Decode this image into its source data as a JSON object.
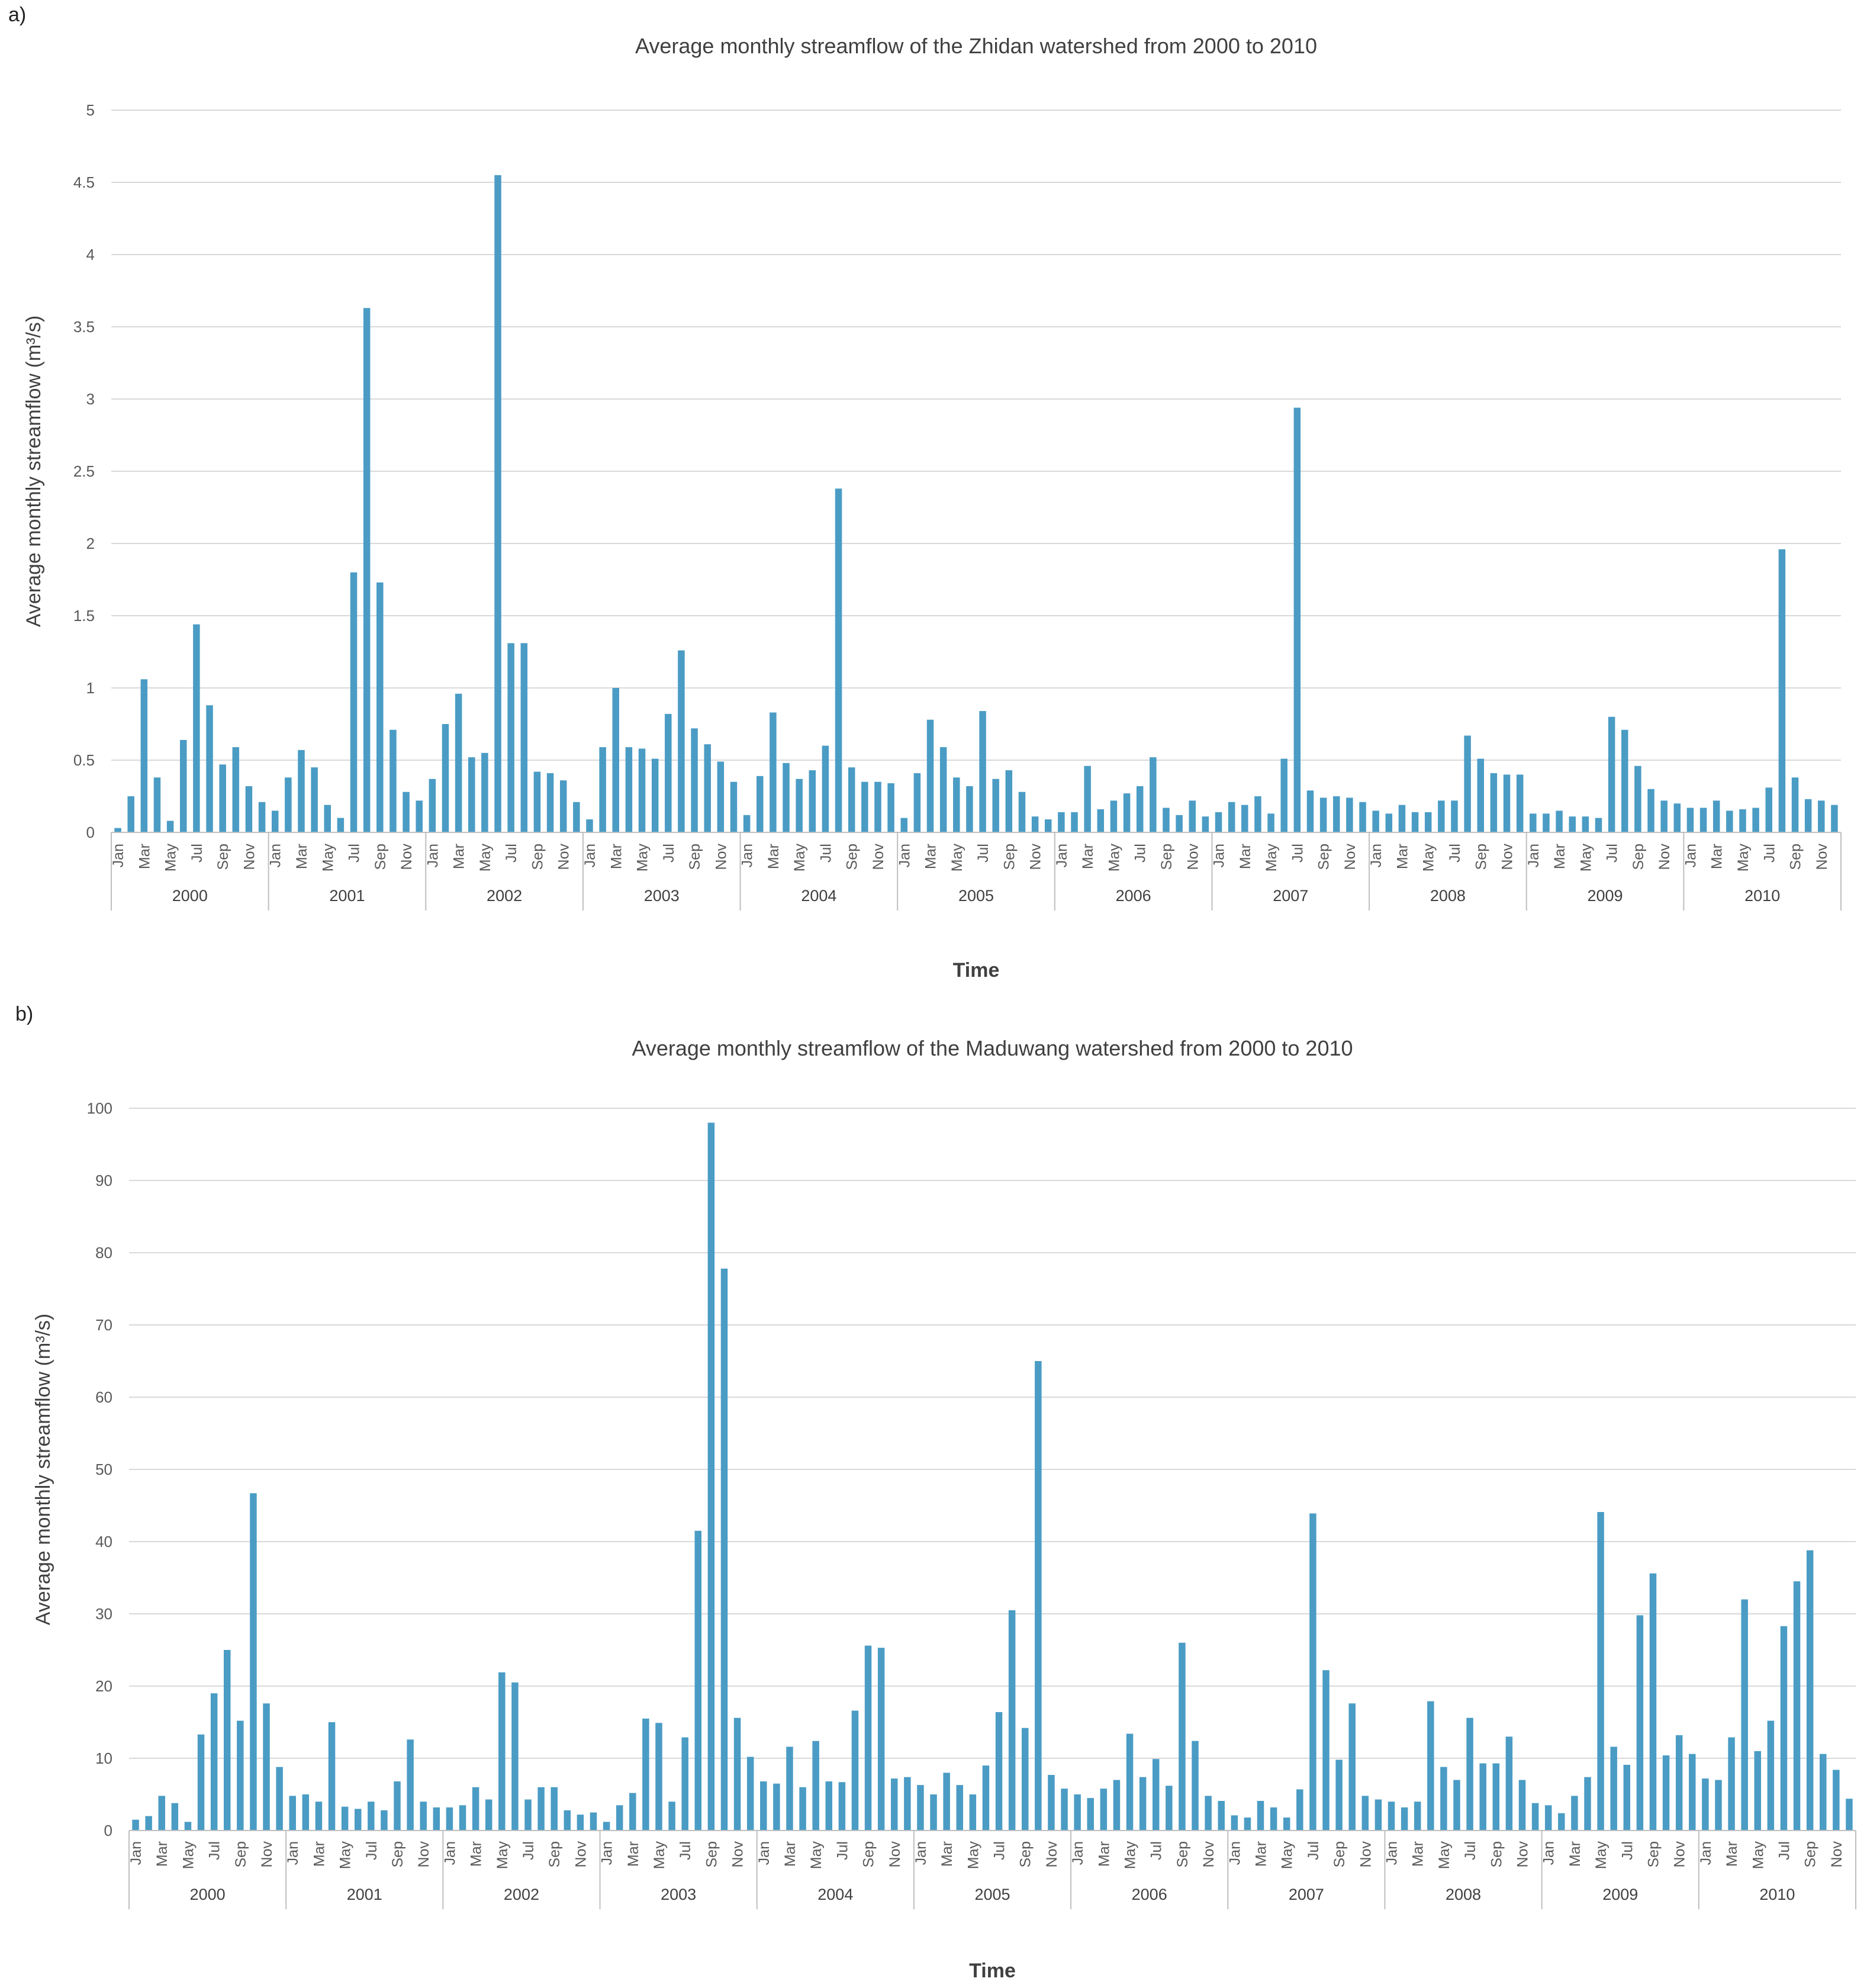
{
  "panels": {
    "a_label": "a)",
    "b_label": "b)"
  },
  "colors": {
    "bar": "#4a9cc5",
    "grid": "#d9d9d9",
    "axis": "#bfbfbf"
  },
  "chart_data": [
    {
      "type": "bar",
      "title": "Average monthly streamflow of the Zhidan watershed from 2000 to 2010",
      "xlabel": "Time",
      "ylabel": "Average monthly streamflow (m³/s)",
      "ylim": [
        0,
        5
      ],
      "yticks": [
        "0",
        "0.5",
        "1",
        "1.5",
        "2",
        "2.5",
        "3",
        "3.5",
        "4",
        "4.5",
        "5"
      ],
      "month_labels": [
        "Jan",
        "Mar",
        "May",
        "Jul",
        "Sep",
        "Nov"
      ],
      "years": [
        "2000",
        "2001",
        "2002",
        "2003",
        "2004",
        "2005",
        "2006",
        "2007",
        "2008",
        "2009",
        "2010"
      ],
      "values": [
        0.03,
        0.25,
        1.06,
        0.38,
        0.08,
        0.64,
        1.44,
        0.88,
        0.47,
        0.59,
        0.32,
        0.21,
        0.15,
        0.38,
        0.57,
        0.45,
        0.19,
        0.1,
        1.8,
        3.63,
        1.73,
        0.71,
        0.28,
        0.22,
        0.37,
        0.75,
        0.96,
        0.52,
        0.55,
        4.55,
        1.31,
        1.31,
        0.42,
        0.41,
        0.36,
        0.21,
        0.09,
        0.59,
        1.0,
        0.59,
        0.58,
        0.51,
        0.82,
        1.26,
        0.72,
        0.61,
        0.49,
        0.35,
        0.12,
        0.39,
        0.83,
        0.48,
        0.37,
        0.43,
        0.6,
        2.38,
        0.45,
        0.35,
        0.35,
        0.34,
        0.1,
        0.41,
        0.78,
        0.59,
        0.38,
        0.32,
        0.84,
        0.37,
        0.43,
        0.28,
        0.11,
        0.09,
        0.14,
        0.14,
        0.46,
        0.16,
        0.22,
        0.27,
        0.32,
        0.52,
        0.17,
        0.12,
        0.22,
        0.11,
        0.14,
        0.21,
        0.19,
        0.25,
        0.13,
        0.51,
        2.94,
        0.29,
        0.24,
        0.25,
        0.24,
        0.21,
        0.15,
        0.13,
        0.19,
        0.14,
        0.14,
        0.22,
        0.22,
        0.67,
        0.51,
        0.41,
        0.4,
        0.4,
        0.13,
        0.13,
        0.15,
        0.11,
        0.11,
        0.1,
        0.8,
        0.71,
        0.46,
        0.3,
        0.22,
        0.2,
        0.17,
        0.17,
        0.22,
        0.15,
        0.16,
        0.17,
        0.31,
        1.96,
        0.38,
        0.23,
        0.22,
        0.19
      ]
    },
    {
      "type": "bar",
      "title": "Average monthly streamflow of the Maduwang watershed from 2000 to 2010",
      "xlabel": "Time",
      "ylabel": "Average monthly streamflow (m³/s)",
      "ylim": [
        0,
        100
      ],
      "yticks": [
        "0",
        "10",
        "20",
        "30",
        "40",
        "50",
        "60",
        "70",
        "80",
        "90",
        "100"
      ],
      "month_labels": [
        "Jan",
        "Mar",
        "May",
        "Jul",
        "Sep",
        "Nov"
      ],
      "years": [
        "2000",
        "2001",
        "2002",
        "2003",
        "2004",
        "2005",
        "2006",
        "2007",
        "2008",
        "2009",
        "2010"
      ],
      "values": [
        1.5,
        2.0,
        4.8,
        3.8,
        1.2,
        13.3,
        19.0,
        25.0,
        15.2,
        46.7,
        17.6,
        8.8,
        4.8,
        5.0,
        4.0,
        15.0,
        3.3,
        3.0,
        4.0,
        2.8,
        6.8,
        12.6,
        4.0,
        3.2,
        3.2,
        3.5,
        6.0,
        4.3,
        21.9,
        20.5,
        4.3,
        6.0,
        6.0,
        2.8,
        2.2,
        2.5,
        1.2,
        3.5,
        5.2,
        15.5,
        14.9,
        4.0,
        12.9,
        41.5,
        98.0,
        77.8,
        15.6,
        10.2,
        6.8,
        6.5,
        11.6,
        6.0,
        12.4,
        6.8,
        6.7,
        16.6,
        25.6,
        25.3,
        7.2,
        7.4,
        6.3,
        5.0,
        8.0,
        6.3,
        5.0,
        9.0,
        16.4,
        30.5,
        14.2,
        65.0,
        7.7,
        5.8,
        5.0,
        4.5,
        5.8,
        7.0,
        13.4,
        7.4,
        9.9,
        6.2,
        26.0,
        12.4,
        4.8,
        4.1,
        2.1,
        1.8,
        4.1,
        3.2,
        1.8,
        5.7,
        43.9,
        22.2,
        9.8,
        17.6,
        4.8,
        4.3,
        4.0,
        3.2,
        4.0,
        17.9,
        8.8,
        7.0,
        15.6,
        9.3,
        9.3,
        13.0,
        7.0,
        3.8,
        3.5,
        2.4,
        4.8,
        7.4,
        44.1,
        11.6,
        9.1,
        29.8,
        35.6,
        10.4,
        13.2,
        10.6,
        7.2,
        7.0,
        12.9,
        32.0,
        11.0,
        15.2,
        28.3,
        34.5,
        38.8,
        10.6,
        8.4,
        4.4
      ]
    }
  ]
}
